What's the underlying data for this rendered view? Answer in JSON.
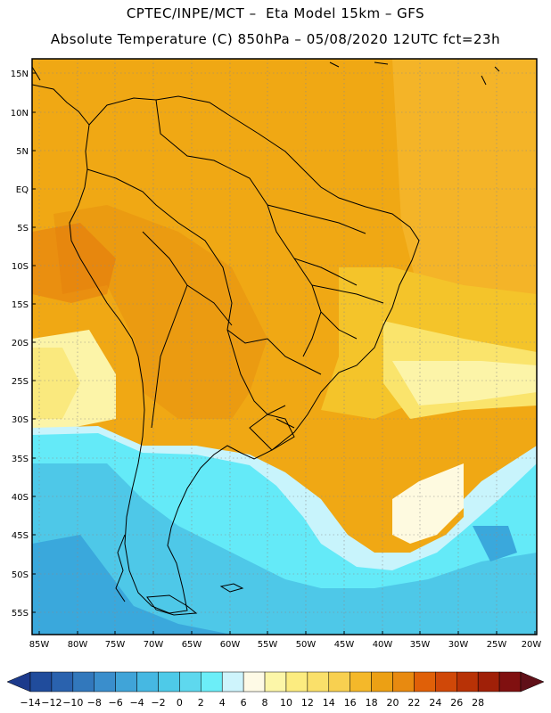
{
  "header": {
    "line1": "CPTEC/INPE/MCT –  Eta Model 15km – GFS",
    "line2": "Absolute Temperature (C) 850hPa – 05/08/2020 12UTC fct=23h"
  },
  "map": {
    "lat_labels": [
      "15N",
      "10N",
      "5N",
      "EQ",
      "5S",
      "10S",
      "15S",
      "20S",
      "25S",
      "30S",
      "35S",
      "40S",
      "45S",
      "50S",
      "55S"
    ],
    "lon_labels": [
      "85W",
      "80W",
      "75W",
      "70W",
      "65W",
      "60W",
      "55W",
      "50W",
      "45W",
      "40W",
      "35W",
      "30W",
      "25W",
      "20W"
    ],
    "colors": {
      "orange_dark": "#e8900e",
      "orange": "#f0a814",
      "yellow_orange": "#f4c42a",
      "yellow": "#fae46c",
      "pale_yellow": "#fcf4a8",
      "cream": "#fefae0",
      "light_cyan": "#c8f4fc",
      "cyan": "#64eaf8",
      "sky": "#4ec8e8",
      "blue": "#3aa8dc"
    }
  },
  "colorbar": {
    "labels": [
      "-14",
      "-12",
      "-10",
      "-8",
      "-6",
      "-4",
      "-2",
      "0",
      "2",
      "4",
      "6",
      "8",
      "10",
      "12",
      "14",
      "16",
      "18",
      "20",
      "22",
      "24",
      "26",
      "28"
    ],
    "colors": [
      "#1c3a8c",
      "#204c9c",
      "#2a62ae",
      "#3278bc",
      "#3a8ecc",
      "#40a4d8",
      "#46b8e2",
      "#4ecae8",
      "#5ed8ee",
      "#6ceef8",
      "#cef4fc",
      "#fefae6",
      "#fcf6a8",
      "#fcec80",
      "#fae06a",
      "#f8d050",
      "#f4b82a",
      "#eca014",
      "#e88a10",
      "#e06008",
      "#d04808",
      "#b83206",
      "#a02008",
      "#801010",
      "#601018"
    ]
  }
}
